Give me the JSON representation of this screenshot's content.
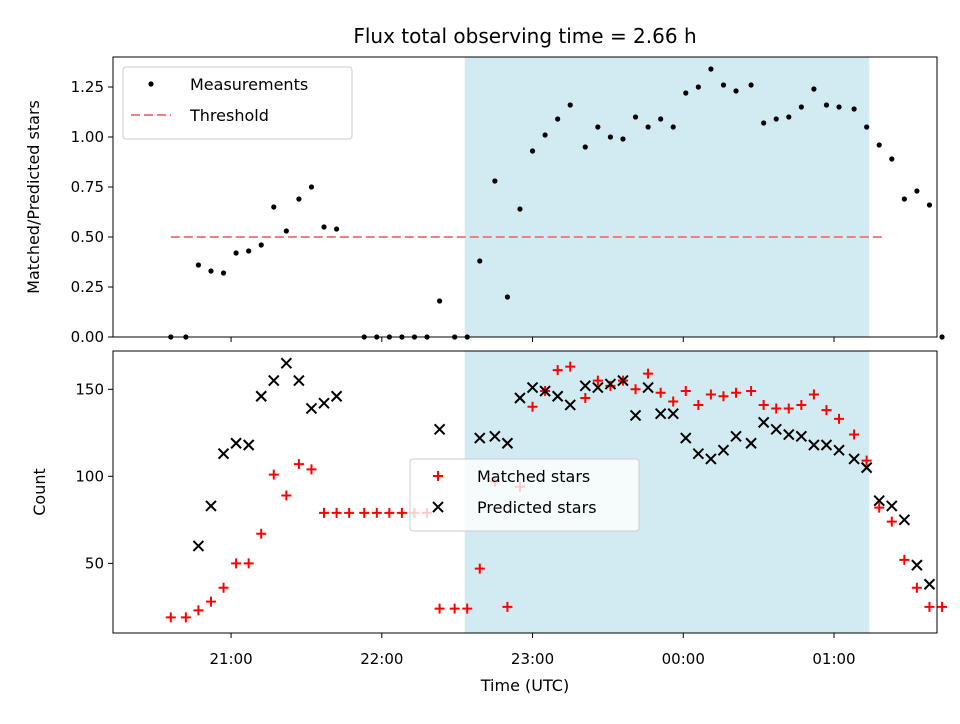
{
  "chart_data": {
    "title": "Flux total observing time = 2.66 h",
    "xlabel": "Time (UTC)",
    "x_ticks": [
      "21:00",
      "22:00",
      "23:00",
      "00:00",
      "01:00"
    ],
    "x_range": [
      "20:13",
      "01:41"
    ],
    "shaded_interval": [
      "22:33",
      "01:14"
    ],
    "shade_color": "#add8e6",
    "panels": [
      {
        "type": "scatter",
        "ylabel": "Matched/Predicted stars",
        "ylim": [
          0,
          1.4
        ],
        "y_ticks": [
          "0.00",
          "0.25",
          "0.50",
          "0.75",
          "1.00",
          "1.25"
        ],
        "legend_position": "upper-left",
        "threshold": {
          "name": "Threshold",
          "value": 0.5,
          "x_start": "20:36",
          "x_end": "01:19",
          "color": "#f08080"
        },
        "series": [
          {
            "name": "Measurements",
            "color": "#000000",
            "points": [
              [
                "20:36",
                0
              ],
              [
                "20:42",
                0
              ],
              [
                "20:47",
                0.36
              ],
              [
                "20:52",
                0.33
              ],
              [
                "20:57",
                0.32
              ],
              [
                "21:02",
                0.42
              ],
              [
                "21:07",
                0.43
              ],
              [
                "21:12",
                0.46
              ],
              [
                "21:17",
                0.65
              ],
              [
                "21:22",
                0.53
              ],
              [
                "21:27",
                0.69
              ],
              [
                "21:32",
                0.75
              ],
              [
                "21:37",
                0.55
              ],
              [
                "21:42",
                0.54
              ],
              [
                "21:53",
                0
              ],
              [
                "21:58",
                0
              ],
              [
                "22:03",
                0
              ],
              [
                "22:08",
                0
              ],
              [
                "22:13",
                0
              ],
              [
                "22:18",
                0
              ],
              [
                "22:23",
                0.18
              ],
              [
                "22:29",
                0
              ],
              [
                "22:34",
                0
              ],
              [
                "22:39",
                0.38
              ],
              [
                "22:45",
                0.78
              ],
              [
                "22:50",
                0.2
              ],
              [
                "22:55",
                0.64
              ],
              [
                "23:00",
                0.93
              ],
              [
                "23:05",
                1.01
              ],
              [
                "23:10",
                1.09
              ],
              [
                "23:15",
                1.16
              ],
              [
                "23:21",
                0.95
              ],
              [
                "23:26",
                1.05
              ],
              [
                "23:31",
                1.0
              ],
              [
                "23:36",
                0.99
              ],
              [
                "23:41",
                1.1
              ],
              [
                "23:46",
                1.05
              ],
              [
                "23:51",
                1.09
              ],
              [
                "23:56",
                1.05
              ],
              [
                "00:01",
                1.22
              ],
              [
                "00:06",
                1.25
              ],
              [
                "00:11",
                1.34
              ],
              [
                "00:16",
                1.26
              ],
              [
                "00:21",
                1.23
              ],
              [
                "00:27",
                1.26
              ],
              [
                "00:32",
                1.07
              ],
              [
                "00:37",
                1.09
              ],
              [
                "00:42",
                1.1
              ],
              [
                "00:47",
                1.15
              ],
              [
                "00:52",
                1.24
              ],
              [
                "00:57",
                1.16
              ],
              [
                "01:02",
                1.15
              ],
              [
                "01:08",
                1.14
              ],
              [
                "01:13",
                1.05
              ],
              [
                "01:18",
                0.96
              ],
              [
                "01:23",
                0.89
              ],
              [
                "01:28",
                0.69
              ],
              [
                "01:33",
                0.73
              ],
              [
                "01:38",
                0.66
              ],
              [
                "01:43",
                0
              ]
            ]
          }
        ]
      },
      {
        "type": "scatter",
        "ylabel": "Count",
        "ylim": [
          10,
          172
        ],
        "y_ticks": [
          "50",
          "100",
          "150"
        ],
        "legend_position": "center",
        "series": [
          {
            "name": "Matched stars",
            "marker": "+",
            "color": "#ff0000",
            "points": [
              [
                "20:36",
                19
              ],
              [
                "20:42",
                19
              ],
              [
                "20:47",
                23
              ],
              [
                "20:52",
                28
              ],
              [
                "20:57",
                36
              ],
              [
                "21:02",
                50
              ],
              [
                "21:07",
                50
              ],
              [
                "21:12",
                67
              ],
              [
                "21:17",
                101
              ],
              [
                "21:22",
                89
              ],
              [
                "21:27",
                107
              ],
              [
                "21:32",
                104
              ],
              [
                "21:37",
                79
              ],
              [
                "21:42",
                79
              ],
              [
                "21:47",
                79
              ],
              [
                "21:53",
                79
              ],
              [
                "21:58",
                79
              ],
              [
                "22:03",
                79
              ],
              [
                "22:08",
                79
              ],
              [
                "22:13",
                79
              ],
              [
                "22:18",
                79
              ],
              [
                "22:23",
                24
              ],
              [
                "22:29",
                24
              ],
              [
                "22:34",
                24
              ],
              [
                "22:39",
                47
              ],
              [
                "22:45",
                97
              ],
              [
                "22:50",
                25
              ],
              [
                "22:55",
                94
              ],
              [
                "23:00",
                140
              ],
              [
                "23:05",
                149
              ],
              [
                "23:10",
                161
              ],
              [
                "23:15",
                163
              ],
              [
                "23:21",
                145
              ],
              [
                "23:26",
                155
              ],
              [
                "23:31",
                152
              ],
              [
                "23:36",
                155
              ],
              [
                "23:41",
                150
              ],
              [
                "23:46",
                159
              ],
              [
                "23:51",
                148
              ],
              [
                "23:56",
                143
              ],
              [
                "00:01",
                149
              ],
              [
                "00:06",
                141
              ],
              [
                "00:11",
                147
              ],
              [
                "00:16",
                146
              ],
              [
                "00:21",
                148
              ],
              [
                "00:27",
                149
              ],
              [
                "00:32",
                141
              ],
              [
                "00:37",
                139
              ],
              [
                "00:42",
                139
              ],
              [
                "00:47",
                141
              ],
              [
                "00:52",
                147
              ],
              [
                "00:57",
                138
              ],
              [
                "01:02",
                133
              ],
              [
                "01:08",
                124
              ],
              [
                "01:13",
                109
              ],
              [
                "01:18",
                82
              ],
              [
                "01:23",
                74
              ],
              [
                "01:28",
                52
              ],
              [
                "01:33",
                36
              ],
              [
                "01:38",
                25
              ],
              [
                "01:43",
                25
              ]
            ]
          },
          {
            "name": "Predicted stars",
            "marker": "x",
            "color": "#000000",
            "points": [
              [
                "20:47",
                60
              ],
              [
                "20:52",
                83
              ],
              [
                "20:57",
                113
              ],
              [
                "21:02",
                119
              ],
              [
                "21:07",
                118
              ],
              [
                "21:12",
                146
              ],
              [
                "21:17",
                155
              ],
              [
                "21:22",
                165
              ],
              [
                "21:27",
                155
              ],
              [
                "21:32",
                139
              ],
              [
                "21:37",
                142
              ],
              [
                "21:42",
                146
              ],
              [
                "22:23",
                127
              ],
              [
                "22:39",
                122
              ],
              [
                "22:45",
                123
              ],
              [
                "22:50",
                119
              ],
              [
                "22:55",
                145
              ],
              [
                "23:00",
                151
              ],
              [
                "23:05",
                149
              ],
              [
                "23:10",
                146
              ],
              [
                "23:15",
                141
              ],
              [
                "23:21",
                152
              ],
              [
                "23:26",
                151
              ],
              [
                "23:31",
                153
              ],
              [
                "23:36",
                155
              ],
              [
                "23:41",
                135
              ],
              [
                "23:46",
                151
              ],
              [
                "23:51",
                136
              ],
              [
                "23:56",
                136
              ],
              [
                "00:01",
                122
              ],
              [
                "00:06",
                113
              ],
              [
                "00:11",
                110
              ],
              [
                "00:16",
                115
              ],
              [
                "00:21",
                123
              ],
              [
                "00:27",
                119
              ],
              [
                "00:32",
                131
              ],
              [
                "00:37",
                127
              ],
              [
                "00:42",
                124
              ],
              [
                "00:47",
                123
              ],
              [
                "00:52",
                118
              ],
              [
                "00:57",
                118
              ],
              [
                "01:02",
                115
              ],
              [
                "01:08",
                110
              ],
              [
                "01:13",
                105
              ],
              [
                "01:18",
                86
              ],
              [
                "01:23",
                83
              ],
              [
                "01:28",
                75
              ],
              [
                "01:33",
                49
              ],
              [
                "01:38",
                38
              ]
            ]
          }
        ]
      }
    ]
  }
}
